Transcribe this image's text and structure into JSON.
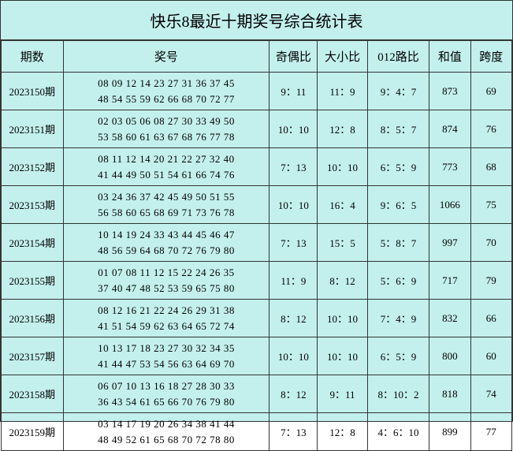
{
  "title": "快乐8最近十期奖号综合统计表",
  "background_color": "#c3f0ed",
  "border_color": "#333333",
  "text_color": "#000000",
  "title_fontsize": 20,
  "header_fontsize": 15,
  "cell_fontsize": 13,
  "columns": {
    "period": "期数",
    "numbers": "奖号",
    "odd_even": "奇偶比",
    "big_small": "大小比",
    "route_012": "012路比",
    "sum": "和值",
    "span": "跨度"
  },
  "column_widths": {
    "period": 72,
    "numbers": 240,
    "odd_even": 56,
    "big_small": 58,
    "route_012": 72,
    "sum": 48,
    "span": 48
  },
  "rows": [
    {
      "period": "2023150期",
      "numbers_line1": "08 09 12 14 23 27 31 36 37 45",
      "numbers_line2": "48 54 55 59 62 66 68 70 72 77",
      "odd_even": "9：11",
      "big_small": "11：9",
      "route_012": "9：4：7",
      "sum": "873",
      "span": "69"
    },
    {
      "period": "2023151期",
      "numbers_line1": "02 03 05 06 08 27 30 33 49 50",
      "numbers_line2": "53 58 60 61 63 67 68 76 77 78",
      "odd_even": "10：10",
      "big_small": "12：8",
      "route_012": "8：5：7",
      "sum": "874",
      "span": "76"
    },
    {
      "period": "2023152期",
      "numbers_line1": "08 11 12 14 20 21 22 27 32 40",
      "numbers_line2": "41 44 49 50 51 54 61 66 74 76",
      "odd_even": "7：13",
      "big_small": "10：10",
      "route_012": "6：5：9",
      "sum": "773",
      "span": "68"
    },
    {
      "period": "2023153期",
      "numbers_line1": "03 24 36 37 42 45 49 50 51 55",
      "numbers_line2": "56 58 60 65 68 69 71 73 76 78",
      "odd_even": "10：10",
      "big_small": "16：4",
      "route_012": "9：6：5",
      "sum": "1066",
      "span": "75"
    },
    {
      "period": "2023154期",
      "numbers_line1": "10 14 19 24 33 43 44 45 46 47",
      "numbers_line2": "48 56 59 64 68 70 72 76 79 80",
      "odd_even": "7：13",
      "big_small": "15：5",
      "route_012": "5：8：7",
      "sum": "997",
      "span": "70"
    },
    {
      "period": "2023155期",
      "numbers_line1": "01 07 08 11 12 15 22 24 26 35",
      "numbers_line2": "37 40 47 48 52 53 59 65 75 80",
      "odd_even": "11：9",
      "big_small": "8：12",
      "route_012": "5：6：9",
      "sum": "717",
      "span": "79"
    },
    {
      "period": "2023156期",
      "numbers_line1": "08 12 16 21 22 24 26 29 31 38",
      "numbers_line2": "41 51 54 59 62 63 64 65 72 74",
      "odd_even": "8：12",
      "big_small": "10：10",
      "route_012": "7：4：9",
      "sum": "832",
      "span": "66"
    },
    {
      "period": "2023157期",
      "numbers_line1": "10 13 17 18 23 27 30 32 34 35",
      "numbers_line2": "41 44 47 53 54 56 63 64 69 70",
      "odd_even": "10：10",
      "big_small": "10：10",
      "route_012": "6：5：9",
      "sum": "800",
      "span": "60"
    },
    {
      "period": "2023158期",
      "numbers_line1": "06 07 10 13 16 18 27 28 30 33",
      "numbers_line2": "36 43 54 61 65 66 70 76 79 80",
      "odd_even": "8：12",
      "big_small": "9：11",
      "route_012": "8：10：2",
      "sum": "818",
      "span": "74"
    },
    {
      "period": "2023159期",
      "numbers_line1": "03 14 17 19 20 26 34 38 41 44",
      "numbers_line2": "48 49 52 61 65 68 70 72 78 80",
      "odd_even": "7：13",
      "big_small": "12：8",
      "route_012": "4：6：10",
      "sum": "899",
      "span": "77"
    }
  ]
}
